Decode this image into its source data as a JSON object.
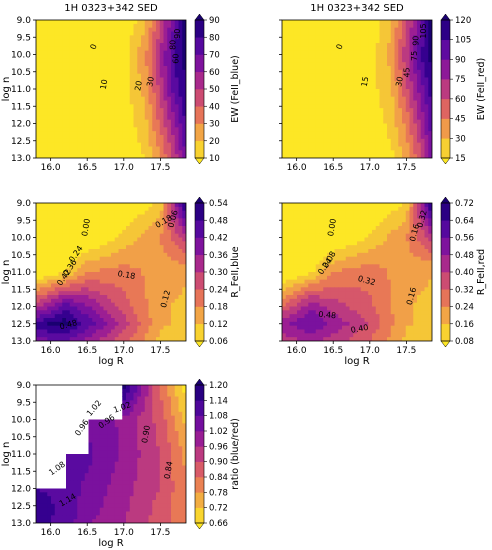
{
  "figure": {
    "panels": [
      {
        "id": "ew-blue",
        "title": "1H 0323+342 SED",
        "xticks": [
          "16.0",
          "16.5",
          "17.0",
          "17.5"
        ],
        "yticks": [
          "9.0",
          "9.5",
          "10.0",
          "10.5",
          "11.0",
          "11.5",
          "12.0",
          "12.5",
          "13.0"
        ],
        "show_xlabel": false,
        "show_ylabel": true,
        "colorbar_label": "EW (FeII_blue)",
        "colorbar_ticks": [
          "10",
          "20",
          "30",
          "40",
          "50",
          "60",
          "70",
          "80",
          "90"
        ],
        "contour_labels": [
          "0",
          "10",
          "20",
          "30",
          "60",
          "80",
          "90"
        ]
      },
      {
        "id": "ew-red",
        "title": "1H 0323+342 SED",
        "xticks": [
          "16.0",
          "16.5",
          "17.0",
          "17.5"
        ],
        "yticks": [],
        "show_xlabel": false,
        "show_ylabel": false,
        "colorbar_label": "EW (FeII_red)",
        "colorbar_ticks": [
          "15",
          "30",
          "45",
          "60",
          "75",
          "90",
          "105",
          "120"
        ],
        "contour_labels": [
          "0",
          "15",
          "30",
          "45",
          "75",
          "90",
          "105"
        ]
      },
      {
        "id": "r-blue",
        "title": "",
        "xticks": [
          "16.0",
          "16.5",
          "17.0",
          "17.5"
        ],
        "yticks": [
          "9.0",
          "9.5",
          "10.0",
          "10.5",
          "11.0",
          "11.5",
          "12.0",
          "12.5",
          "13.0"
        ],
        "show_xlabel": true,
        "show_ylabel": true,
        "colorbar_label": "R_FeII,blue",
        "colorbar_ticks": [
          "0.06",
          "0.12",
          "0.18",
          "0.24",
          "0.30",
          "0.36",
          "0.42",
          "0.48",
          "0.54"
        ],
        "contour_labels": [
          "0.00",
          "0.18",
          "0.18",
          "0.24",
          "0.36",
          "0.42",
          "0.48",
          "0.12",
          "0.06"
        ]
      },
      {
        "id": "r-red",
        "title": "",
        "xticks": [
          "16.0",
          "16.5",
          "17.0",
          "17.5"
        ],
        "yticks": [],
        "show_xlabel": true,
        "show_ylabel": false,
        "colorbar_label": "R_FeII,red",
        "colorbar_ticks": [
          "0.08",
          "0.16",
          "0.24",
          "0.32",
          "0.40",
          "0.48",
          "0.56",
          "0.64",
          "0.72"
        ],
        "contour_labels": [
          "0.00",
          "0.08",
          "0.16",
          "0.24",
          "0.32",
          "0.40",
          "0.48",
          "0.16",
          "0.32"
        ]
      },
      {
        "id": "ratio",
        "title": "",
        "xticks": [
          "16.0",
          "16.5",
          "17.0",
          "17.5"
        ],
        "yticks": [
          "9.0",
          "9.5",
          "10.0",
          "10.5",
          "11.0",
          "11.5",
          "12.0",
          "12.5",
          "13.0"
        ],
        "show_xlabel": true,
        "show_ylabel": true,
        "colorbar_label": "ratio (blue/red)",
        "colorbar_ticks": [
          "0.66",
          "0.72",
          "0.78",
          "0.84",
          "0.90",
          "0.96",
          "1.02",
          "1.08",
          "1.14",
          "1.20"
        ],
        "contour_labels": [
          "1.02",
          "0.96",
          "0.90",
          "0.84",
          "1.08",
          "1.14",
          "1.02",
          "0.96"
        ]
      }
    ],
    "xlabel": "log R",
    "ylabel": "log n",
    "colormap": [
      "#fde725",
      "#f5c637",
      "#f1a048",
      "#e87856",
      "#d6576a",
      "#bb3a80",
      "#9c1f93",
      "#7a119e",
      "#5a0aa0",
      "#35008f",
      "#1a0070"
    ]
  },
  "chart_data": [
    {
      "type": "heatmap",
      "title": "1H 0323+342 SED",
      "xlabel": "",
      "ylabel": "log n",
      "x_range": [
        15.8,
        17.85
      ],
      "y_range": [
        9.0,
        13.0
      ],
      "y_inverted": true,
      "colorbar_label": "EW (FeII_blue)",
      "colorbar_range": [
        10,
        90
      ],
      "z_rows_log_n": [
        9.0,
        10.0,
        11.0,
        12.0,
        13.0
      ],
      "z_cols_log_R": [
        15.8,
        16.5,
        17.0,
        17.3,
        17.5,
        17.7,
        17.85
      ],
      "z": [
        [
          0,
          2,
          6,
          20,
          45,
          70,
          90
        ],
        [
          0,
          3,
          10,
          30,
          55,
          80,
          90
        ],
        [
          0,
          3,
          10,
          25,
          50,
          75,
          85
        ],
        [
          0,
          2,
          8,
          20,
          40,
          60,
          80
        ],
        [
          0,
          1,
          5,
          15,
          30,
          50,
          70
        ]
      ]
    },
    {
      "type": "heatmap",
      "title": "1H 0323+342 SED",
      "xlabel": "",
      "ylabel": "",
      "x_range": [
        15.8,
        17.85
      ],
      "y_range": [
        9.0,
        13.0
      ],
      "y_inverted": true,
      "colorbar_label": "EW (FeII_red)",
      "colorbar_range": [
        15,
        120
      ],
      "z_rows_log_n": [
        9.0,
        10.0,
        11.0,
        12.0,
        13.0
      ],
      "z_cols_log_R": [
        15.8,
        16.5,
        17.0,
        17.3,
        17.5,
        17.7,
        17.85
      ],
      "z": [
        [
          0,
          3,
          10,
          30,
          60,
          90,
          120
        ],
        [
          0,
          5,
          15,
          35,
          70,
          105,
          120
        ],
        [
          0,
          4,
          15,
          30,
          60,
          90,
          110
        ],
        [
          0,
          3,
          10,
          25,
          45,
          75,
          100
        ],
        [
          0,
          2,
          6,
          18,
          35,
          60,
          90
        ]
      ]
    },
    {
      "type": "heatmap",
      "title": "",
      "xlabel": "log R",
      "ylabel": "log n",
      "x_range": [
        15.8,
        17.85
      ],
      "y_range": [
        9.0,
        13.0
      ],
      "y_inverted": true,
      "colorbar_label": "R_FeII,blue",
      "colorbar_range": [
        0.06,
        0.54
      ],
      "z_rows_log_n": [
        9.0,
        10.0,
        11.0,
        12.0,
        12.5,
        13.0
      ],
      "z_cols_log_R": [
        15.8,
        16.2,
        16.5,
        17.0,
        17.5,
        17.85
      ],
      "z": [
        [
          0.0,
          0.0,
          0.0,
          0.02,
          0.1,
          0.54
        ],
        [
          0.0,
          0.0,
          0.02,
          0.1,
          0.18,
          0.3
        ],
        [
          0.02,
          0.08,
          0.18,
          0.2,
          0.16,
          0.14
        ],
        [
          0.3,
          0.45,
          0.38,
          0.25,
          0.14,
          0.12
        ],
        [
          0.5,
          0.54,
          0.45,
          0.3,
          0.14,
          0.12
        ],
        [
          0.4,
          0.42,
          0.36,
          0.24,
          0.12,
          0.1
        ]
      ]
    },
    {
      "type": "heatmap",
      "title": "",
      "xlabel": "log R",
      "ylabel": "",
      "x_range": [
        15.8,
        17.85
      ],
      "y_range": [
        9.0,
        13.0
      ],
      "y_inverted": true,
      "colorbar_label": "R_FeII,red",
      "colorbar_range": [
        0.08,
        0.72
      ],
      "z_rows_log_n": [
        9.0,
        10.0,
        11.0,
        12.0,
        12.5,
        13.0
      ],
      "z_cols_log_R": [
        15.8,
        16.2,
        16.5,
        17.0,
        17.5,
        17.85
      ],
      "z": [
        [
          0.0,
          0.0,
          0.0,
          0.02,
          0.12,
          0.72
        ],
        [
          0.0,
          0.0,
          0.02,
          0.12,
          0.24,
          0.4
        ],
        [
          0.02,
          0.1,
          0.24,
          0.28,
          0.2,
          0.18
        ],
        [
          0.3,
          0.48,
          0.4,
          0.32,
          0.18,
          0.16
        ],
        [
          0.48,
          0.56,
          0.48,
          0.36,
          0.18,
          0.16
        ],
        [
          0.4,
          0.44,
          0.4,
          0.3,
          0.16,
          0.14
        ]
      ]
    },
    {
      "type": "heatmap",
      "title": "",
      "xlabel": "log R",
      "ylabel": "log n",
      "x_range": [
        15.8,
        17.85
      ],
      "y_range": [
        9.0,
        13.0
      ],
      "y_inverted": true,
      "colorbar_label": "ratio (blue/red)",
      "colorbar_range": [
        0.66,
        1.2
      ],
      "z_rows_log_n": [
        9.0,
        10.0,
        11.0,
        12.0,
        12.5,
        13.0
      ],
      "z_cols_log_R": [
        15.8,
        16.2,
        16.5,
        17.0,
        17.5,
        17.85
      ],
      "z": [
        [
          null,
          null,
          null,
          1.2,
          0.84,
          0.66
        ],
        [
          null,
          null,
          1.05,
          1.0,
          0.88,
          0.72
        ],
        [
          null,
          1.1,
          1.08,
          1.0,
          0.9,
          0.78
        ],
        [
          1.12,
          1.1,
          1.05,
          0.98,
          0.9,
          0.8
        ],
        [
          1.15,
          1.1,
          1.04,
          0.97,
          0.88,
          0.8
        ],
        [
          1.14,
          1.1,
          1.02,
          0.96,
          0.88,
          0.8
        ]
      ]
    }
  ]
}
